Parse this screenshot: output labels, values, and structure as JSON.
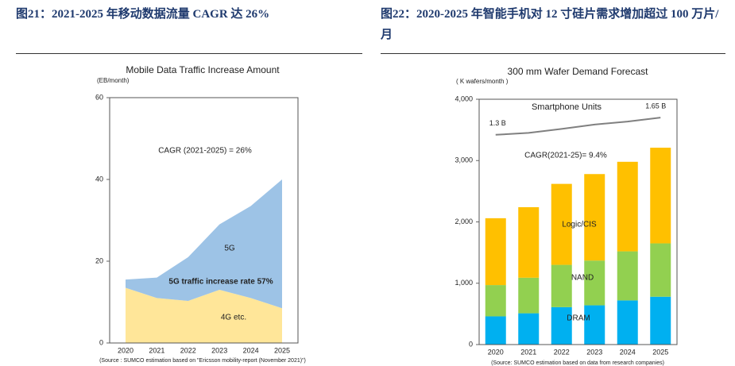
{
  "captions": [
    "图21：2021-2025 年移动数据流量 CAGR 达 26%",
    "图22：2020-2025 年智能手机对 12 寸硅片需求增加超过 100 万片/月"
  ],
  "chart_data": [
    {
      "type": "area",
      "title": "Mobile Data Traffic Increase Amount",
      "y_label": "(EB/month)",
      "source": "(Source : SUMCO estimation based on \"Ericsson mobility-report (November 2021)\")",
      "categories": [
        "2020",
        "2021",
        "2022",
        "2023",
        "2024",
        "2025"
      ],
      "series": [
        {
          "name": "4G etc.",
          "color": "#ffe699",
          "values": [
            13.5,
            11,
            10.3,
            13,
            11,
            8.5
          ]
        },
        {
          "name": "5G",
          "color": "#9dc3e6",
          "values": [
            2,
            5,
            10.7,
            16,
            22.5,
            31.5
          ]
        }
      ],
      "annotations": [
        "CAGR (2021-2025) = 26%",
        "5G traffic increase rate  57%"
      ],
      "ylim": [
        0,
        60
      ],
      "yticks": [
        0,
        20,
        40,
        60
      ]
    },
    {
      "type": "bar",
      "title": "300 mm Wafer Demand Forecast",
      "y_label": "( K wafers/month )",
      "source": "(Source: SUMCO estimation based on data from research companies)",
      "categories": [
        "2020",
        "2021",
        "2022",
        "2023",
        "2024",
        "2025"
      ],
      "series": [
        {
          "name": "DRAM",
          "color": "#00b0f0",
          "values": [
            460,
            510,
            610,
            640,
            720,
            780
          ]
        },
        {
          "name": "NAND",
          "color": "#92d050",
          "values": [
            510,
            580,
            690,
            730,
            800,
            870
          ]
        },
        {
          "name": "Logic/CIS",
          "color": "#ffc000",
          "values": [
            1090,
            1150,
            1320,
            1410,
            1460,
            1560
          ]
        },
        {
          "name": "Smartphone Units",
          "color": "#808080",
          "axis": "y2",
          "values": [
            1.3,
            1.34,
            1.42,
            1.51,
            1.57,
            1.65
          ],
          "value_labels": [
            "1.3 B",
            null,
            null,
            null,
            null,
            "1.65 B"
          ]
        }
      ],
      "annotations": [
        "CAGR(2021-25)= 9.4%"
      ],
      "ylim": [
        0,
        4000
      ],
      "yticks": [
        0,
        {
          "value": 1000,
          "label": "1,000"
        },
        {
          "value": 2000,
          "label": "2,000"
        },
        {
          "value": 3000,
          "label": "3,000"
        },
        {
          "value": 4000,
          "label": "4,000"
        }
      ],
      "y2lim": [
        -2.975,
        2.025
      ]
    }
  ]
}
